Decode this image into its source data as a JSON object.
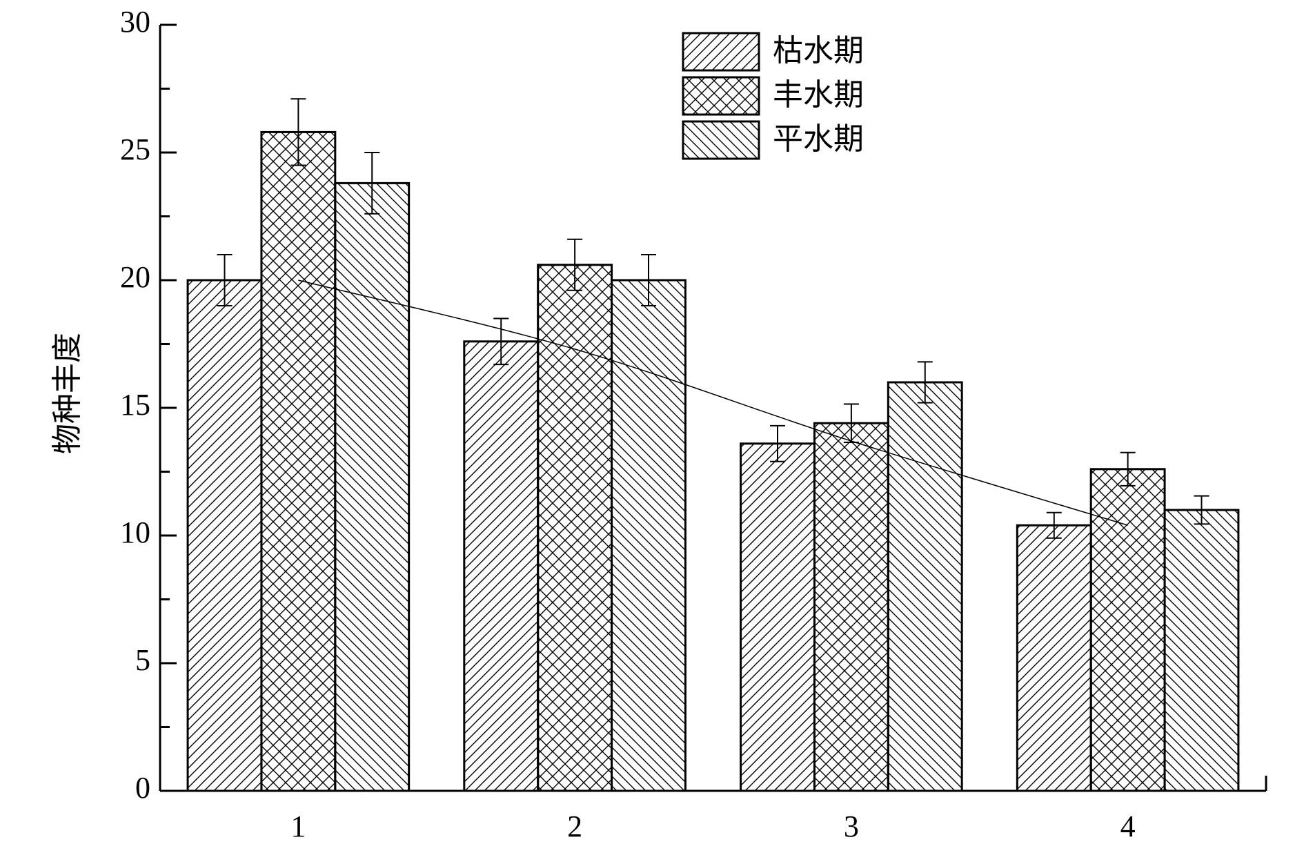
{
  "chart_data": {
    "type": "bar",
    "y_label": "物种丰度",
    "categories": [
      "1",
      "2",
      "3",
      "4"
    ],
    "series": [
      {
        "name": "枯水期",
        "color": "#000000",
        "hatch": "/",
        "values": [
          20,
          17.6,
          13.6,
          10.4
        ],
        "errors": [
          1.0,
          0.9,
          0.7,
          0.5
        ]
      },
      {
        "name": "丰水期",
        "color": "#000000",
        "hatch": "x",
        "values": [
          25.8,
          20.6,
          14.4,
          12.6
        ],
        "errors": [
          1.3,
          1.0,
          0.75,
          0.65
        ]
      },
      {
        "name": "平水期",
        "color": "#000000",
        "hatch": "\\",
        "values": [
          23.8,
          20,
          16,
          11
        ],
        "errors": [
          1.2,
          1.0,
          0.8,
          0.55
        ]
      }
    ],
    "trend_line": {
      "color": "#000000",
      "values": [
        20,
        17.3,
        13.7,
        10.4
      ]
    },
    "ylim": [
      0,
      30
    ],
    "yticks": [
      0,
      5,
      10,
      15,
      20,
      25,
      30
    ],
    "yminorticks": [
      2.5,
      7.5,
      12.5,
      17.5,
      22.5,
      27.5
    ],
    "legend": "top-right"
  }
}
